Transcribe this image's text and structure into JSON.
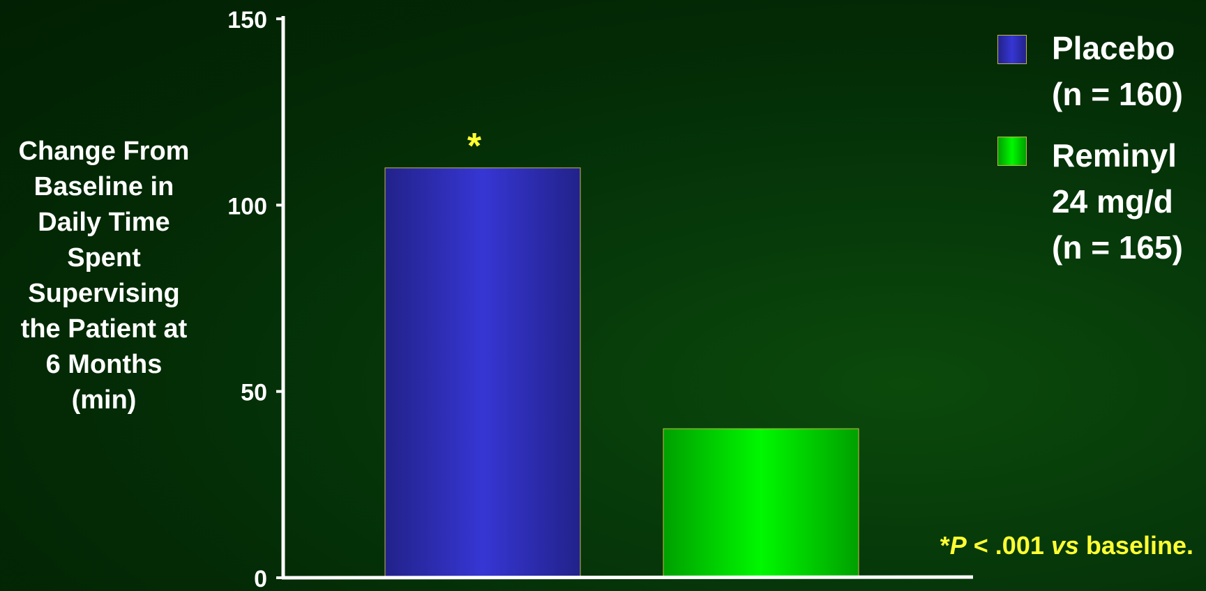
{
  "chart_data": {
    "type": "bar",
    "categories": [
      "Placebo",
      "Reminyl 24 mg/d"
    ],
    "values": [
      110,
      40
    ],
    "ylim": [
      0,
      150
    ],
    "yticks": [
      "0",
      "50",
      "100",
      "150"
    ],
    "ylabel_lines": [
      "Change From",
      "Baseline in",
      "Daily Time",
      "Spent",
      "Supervising",
      "the Patient at",
      "6 Months",
      "(min)"
    ],
    "legend": [
      {
        "lines": [
          "Placebo",
          "(n = 160)"
        ],
        "color": "#3333cc"
      },
      {
        "lines": [
          "Reminyl",
          "24 mg/d",
          "(n = 165)"
        ],
        "color": "#00ee00"
      }
    ],
    "annotation": "*",
    "footnote": {
      "star": "*",
      "p": "P",
      "text1": " < .001 ",
      "vs": "vs",
      "text2": " baseline."
    },
    "colors": {
      "axis": "#ffffff",
      "annotation": "#ffff33",
      "bar_border": "#c8b84a"
    },
    "grid": false,
    "legend_position": "top-right"
  }
}
